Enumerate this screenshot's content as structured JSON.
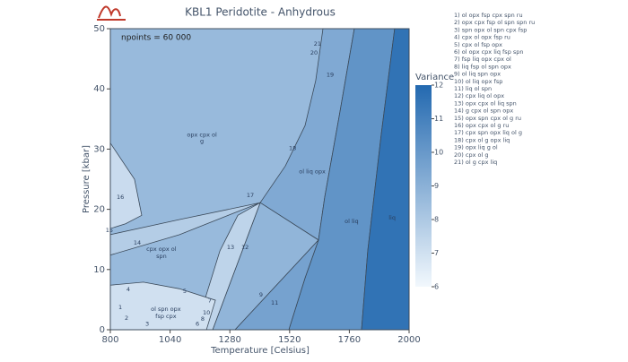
{
  "chart_data": {
    "type": "pseudosection",
    "title": "KBL1 Peridotite - Anhydrous",
    "x_label": "Temperature [Celsius]",
    "y_label": "Pressure [kbar]",
    "annotation": "npoints = 60 000",
    "xlim": [
      800,
      2000
    ],
    "xticks": [
      800,
      1040,
      1280,
      1520,
      1760,
      2000
    ],
    "ylim": [
      0,
      50
    ],
    "yticks": [
      0,
      10,
      20,
      30,
      40,
      50
    ],
    "colorbar_title": "Variance",
    "zlim": [
      6,
      12
    ],
    "zticks": [
      6,
      7,
      8,
      9,
      10,
      11,
      12
    ],
    "colors": [
      "#f2f8fd",
      "#2369b0"
    ],
    "fields": [
      {
        "variance": 8.6,
        "T": [
          800,
          2000,
          2000,
          800
        ],
        "P": [
          0,
          0,
          50,
          50
        ]
      },
      {
        "variance": 9.3,
        "T": [
          1402,
          1503,
          1582,
          1625,
          1654,
          1780,
          1719,
          1661,
          1636
        ],
        "P": [
          21.1,
          27.2,
          33.9,
          41.4,
          50,
          50,
          35.4,
          22.0,
          14.9
        ]
      },
      {
        "variance": 10.2,
        "T": [
          1780,
          1942,
          1888,
          1834,
          1809,
          1517,
          1582,
          1636,
          1661,
          1719
        ],
        "P": [
          50,
          50,
          32.4,
          13.1,
          0,
          0,
          8.6,
          14.9,
          22.0,
          35.4
        ]
      },
      {
        "variance": 11.6,
        "T": [
          1942,
          2000,
          2000,
          1809,
          1834,
          1888
        ],
        "P": [
          50,
          50,
          0,
          0,
          13.1,
          32.4
        ]
      },
      {
        "variance": 8.8,
        "T": [
          1211,
          1402,
          1636,
          1301
        ],
        "P": [
          0,
          21.1,
          14.9,
          0
        ]
      },
      {
        "variance": 9.6,
        "T": [
          1301,
          1636,
          1582,
          1517
        ],
        "P": [
          0,
          14.9,
          8.6,
          0
        ]
      },
      {
        "variance": 7.5,
        "T": [
          1142,
          1211,
          1402,
          1312,
          1240
        ],
        "P": [
          0,
          0,
          21.1,
          19.0,
          13.1
        ]
      },
      {
        "variance": 7.0,
        "T": [
          800,
          933,
          1078,
          1222,
          1186,
          800
        ],
        "P": [
          7.4,
          7.9,
          6.8,
          4.9,
          0,
          0
        ]
      },
      {
        "variance": 7.2,
        "T": [
          800,
          897,
          926,
          861,
          800
        ],
        "P": [
          31.0,
          25.0,
          19.0,
          17.6,
          16.8
        ]
      },
      {
        "variance": 7.8,
        "T": [
          800,
          1078,
          1402,
          1078,
          800
        ],
        "P": [
          15.8,
          18.3,
          21.1,
          15.8,
          12.4
        ]
      }
    ],
    "labels": [
      {
        "text": "opx cpx ol",
        "T": 1168,
        "P": 32.4
      },
      {
        "text": "g",
        "T": 1168,
        "P": 31.3
      },
      {
        "text": "ol liq opx",
        "T": 1611,
        "P": 26.3
      },
      {
        "text": "ol liq",
        "T": 1769,
        "P": 18.0
      },
      {
        "text": "liq",
        "T": 1932,
        "P": 18.6
      },
      {
        "text": "cpx opx ol",
        "T": 1005,
        "P": 13.4
      },
      {
        "text": "spn",
        "T": 1005,
        "P": 12.2
      },
      {
        "text": "ol spn opx",
        "T": 1023,
        "P": 3.4
      },
      {
        "text": "fsp cpx",
        "T": 1023,
        "P": 2.2
      },
      {
        "text": "16",
        "T": 840,
        "P": 22.0
      },
      {
        "text": "15",
        "T": 796,
        "P": 16.5
      },
      {
        "text": "14",
        "T": 908,
        "P": 14.4
      },
      {
        "text": "17",
        "T": 1362,
        "P": 22.3
      },
      {
        "text": "18",
        "T": 1532,
        "P": 30.1
      },
      {
        "text": "19",
        "T": 1683,
        "P": 42.3
      },
      {
        "text": "20",
        "T": 1618,
        "P": 46.0
      },
      {
        "text": "21",
        "T": 1632,
        "P": 47.5
      },
      {
        "text": "13",
        "T": 1283,
        "P": 13.7
      },
      {
        "text": "12",
        "T": 1341,
        "P": 13.7
      },
      {
        "text": "5",
        "T": 1099,
        "P": 6.4
      },
      {
        "text": "4",
        "T": 872,
        "P": 6.7
      },
      {
        "text": "1",
        "T": 840,
        "P": 3.7
      },
      {
        "text": "2",
        "T": 865,
        "P": 1.9
      },
      {
        "text": "3",
        "T": 948,
        "P": 1.0
      },
      {
        "text": "6",
        "T": 1150,
        "P": 1.0
      },
      {
        "text": "7",
        "T": 1200,
        "P": 4.8
      },
      {
        "text": "8",
        "T": 1171,
        "P": 1.8
      },
      {
        "text": "10",
        "T": 1186,
        "P": 2.8
      },
      {
        "text": "9",
        "T": 1405,
        "P": 5.8
      },
      {
        "text": "11",
        "T": 1460,
        "P": 4.5
      }
    ],
    "legend": [
      "1) ol opx fsp cpx spn ru",
      "2) opx cpx fsp ol spn spn ru",
      "3) spn opx ol spn cpx fsp",
      "4) cpx ol opx fsp ru",
      "5) cpx ol fsp opx",
      "6) ol opx cpx liq fsp spn",
      "7) fsp liq opx cpx ol",
      "8) liq fsp ol spn opx",
      "9) ol liq spn opx",
      "10) ol liq opx fsp",
      "11) liq ol spn",
      "12) cpx liq ol opx",
      "13) opx cpx ol liq spn",
      "14) g cpx ol spn opx",
      "15) opx spn cpx ol g ru",
      "16) opx cpx ol g ru",
      "17) cpx spn opx liq ol g",
      "18) cpx ol g opx liq",
      "19) opx liq g ol",
      "20) cpx ol g",
      "21) ol g cpx liq"
    ]
  }
}
